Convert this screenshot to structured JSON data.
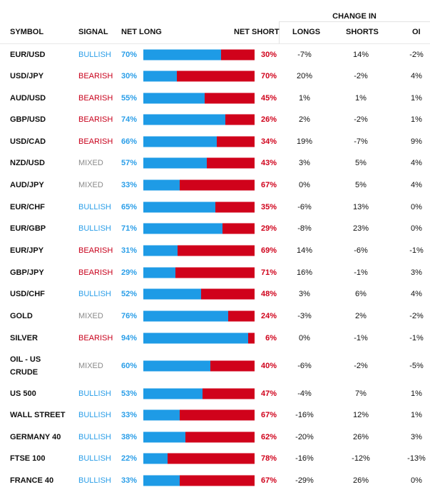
{
  "header": {
    "change_in": "CHANGE IN",
    "symbol": "SYMBOL",
    "signal": "SIGNAL",
    "net_long": "NET LONG",
    "net_short": "NET SHORT",
    "longs": "LONGS",
    "shorts": "SHORTS",
    "oi": "OI"
  },
  "rows": [
    {
      "symbol": "EUR/USD",
      "signal": "BULLISH",
      "signal_class": "bullish",
      "net_long": "70%",
      "net_long_value": 70,
      "net_short": "30%",
      "longs": "-7%",
      "shorts": "14%",
      "oi": "-2%"
    },
    {
      "symbol": "USD/JPY",
      "signal": "BEARISH",
      "signal_class": "bearish",
      "net_long": "30%",
      "net_long_value": 30,
      "net_short": "70%",
      "longs": "20%",
      "shorts": "-2%",
      "oi": "4%"
    },
    {
      "symbol": "AUD/USD",
      "signal": "BEARISH",
      "signal_class": "bearish",
      "net_long": "55%",
      "net_long_value": 55,
      "net_short": "45%",
      "longs": "1%",
      "shorts": "1%",
      "oi": "1%"
    },
    {
      "symbol": "GBP/USD",
      "signal": "BEARISH",
      "signal_class": "bearish",
      "net_long": "74%",
      "net_long_value": 74,
      "net_short": "26%",
      "longs": "2%",
      "shorts": "-2%",
      "oi": "1%"
    },
    {
      "symbol": "USD/CAD",
      "signal": "BEARISH",
      "signal_class": "bearish",
      "net_long": "66%",
      "net_long_value": 66,
      "net_short": "34%",
      "longs": "19%",
      "shorts": "-7%",
      "oi": "9%"
    },
    {
      "symbol": "NZD/USD",
      "signal": "MIXED",
      "signal_class": "mixed",
      "net_long": "57%",
      "net_long_value": 57,
      "net_short": "43%",
      "longs": "3%",
      "shorts": "5%",
      "oi": "4%"
    },
    {
      "symbol": "AUD/JPY",
      "signal": "MIXED",
      "signal_class": "mixed",
      "net_long": "33%",
      "net_long_value": 33,
      "net_short": "67%",
      "longs": "0%",
      "shorts": "5%",
      "oi": "4%"
    },
    {
      "symbol": "EUR/CHF",
      "signal": "BULLISH",
      "signal_class": "bullish",
      "net_long": "65%",
      "net_long_value": 65,
      "net_short": "35%",
      "longs": "-6%",
      "shorts": "13%",
      "oi": "0%"
    },
    {
      "symbol": "EUR/GBP",
      "signal": "BULLISH",
      "signal_class": "bullish",
      "net_long": "71%",
      "net_long_value": 71,
      "net_short": "29%",
      "longs": "-8%",
      "shorts": "23%",
      "oi": "0%"
    },
    {
      "symbol": "EUR/JPY",
      "signal": "BEARISH",
      "signal_class": "bearish",
      "net_long": "31%",
      "net_long_value": 31,
      "net_short": "69%",
      "longs": "14%",
      "shorts": "-6%",
      "oi": "-1%"
    },
    {
      "symbol": "GBP/JPY",
      "signal": "BEARISH",
      "signal_class": "bearish",
      "net_long": "29%",
      "net_long_value": 29,
      "net_short": "71%",
      "longs": "16%",
      "shorts": "-1%",
      "oi": "3%"
    },
    {
      "symbol": "USD/CHF",
      "signal": "BULLISH",
      "signal_class": "bullish",
      "net_long": "52%",
      "net_long_value": 52,
      "net_short": "48%",
      "longs": "3%",
      "shorts": "6%",
      "oi": "4%"
    },
    {
      "symbol": "GOLD",
      "signal": "MIXED",
      "signal_class": "mixed",
      "net_long": "76%",
      "net_long_value": 76,
      "net_short": "24%",
      "longs": "-3%",
      "shorts": "2%",
      "oi": "-2%"
    },
    {
      "symbol": "SILVER",
      "signal": "BEARISH",
      "signal_class": "bearish",
      "net_long": "94%",
      "net_long_value": 94,
      "net_short": "6%",
      "longs": "0%",
      "shorts": "-1%",
      "oi": "-1%"
    },
    {
      "symbol": "OIL - US CRUDE",
      "signal": "MIXED",
      "signal_class": "mixed",
      "net_long": "60%",
      "net_long_value": 60,
      "net_short": "40%",
      "longs": "-6%",
      "shorts": "-2%",
      "oi": "-5%"
    },
    {
      "symbol": "US 500",
      "signal": "BULLISH",
      "signal_class": "bullish",
      "net_long": "53%",
      "net_long_value": 53,
      "net_short": "47%",
      "longs": "-4%",
      "shorts": "7%",
      "oi": "1%"
    },
    {
      "symbol": "WALL STREET",
      "signal": "BULLISH",
      "signal_class": "bullish",
      "net_long": "33%",
      "net_long_value": 33,
      "net_short": "67%",
      "longs": "-16%",
      "shorts": "12%",
      "oi": "1%"
    },
    {
      "symbol": "GERMANY 40",
      "signal": "BULLISH",
      "signal_class": "bullish",
      "net_long": "38%",
      "net_long_value": 38,
      "net_short": "62%",
      "longs": "-20%",
      "shorts": "26%",
      "oi": "3%"
    },
    {
      "symbol": "FTSE 100",
      "signal": "BULLISH",
      "signal_class": "bullish",
      "net_long": "22%",
      "net_long_value": 22,
      "net_short": "78%",
      "longs": "-16%",
      "shorts": "-12%",
      "oi": "-13%"
    },
    {
      "symbol": "FRANCE 40",
      "signal": "BULLISH",
      "signal_class": "bullish",
      "net_long": "33%",
      "net_long_value": 33,
      "net_short": "67%",
      "longs": "-29%",
      "shorts": "26%",
      "oi": "0%"
    }
  ],
  "colors": {
    "bullish": "#2a9ee8",
    "bearish": "#c8001b",
    "mixed": "#8a8a8a",
    "long_bar": "#1e9be6",
    "short_bar": "#d0021b"
  }
}
